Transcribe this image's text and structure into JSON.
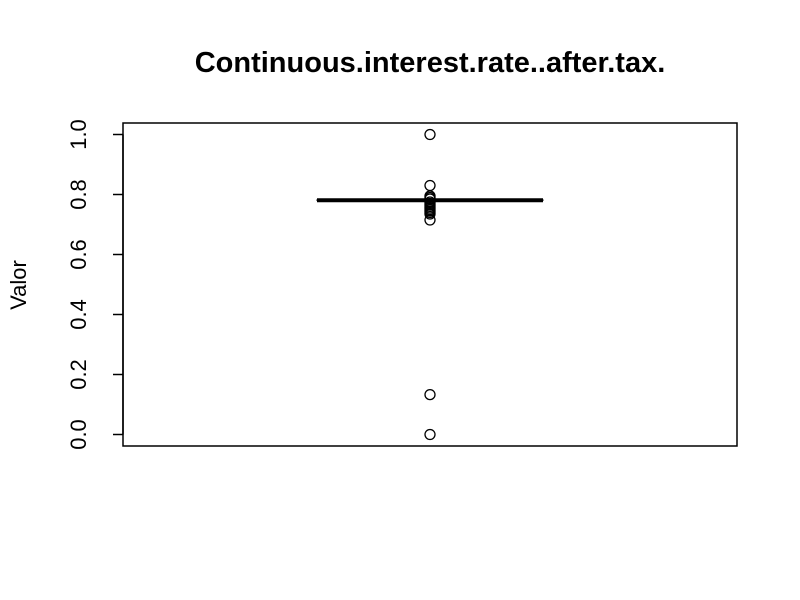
{
  "chart_data": {
    "type": "boxplot",
    "title": "Continuous.interest.rate..after.tax.",
    "ylabel": "Valor",
    "xlabel": "",
    "ylim": [
      0,
      1
    ],
    "yticks": [
      "0.0",
      "0.2",
      "0.4",
      "0.6",
      "0.8",
      "1.0"
    ],
    "grid": false,
    "series": [
      {
        "median": 0.781,
        "q1": 0.781,
        "q3": 0.782,
        "whisker_low": 0.779,
        "whisker_high": 0.784,
        "outliers": [
          1.0,
          0.83,
          0.795,
          0.79,
          0.785,
          0.775,
          0.77,
          0.765,
          0.76,
          0.755,
          0.75,
          0.745,
          0.74,
          0.735,
          0.715,
          0.133,
          0.0
        ]
      }
    ]
  }
}
